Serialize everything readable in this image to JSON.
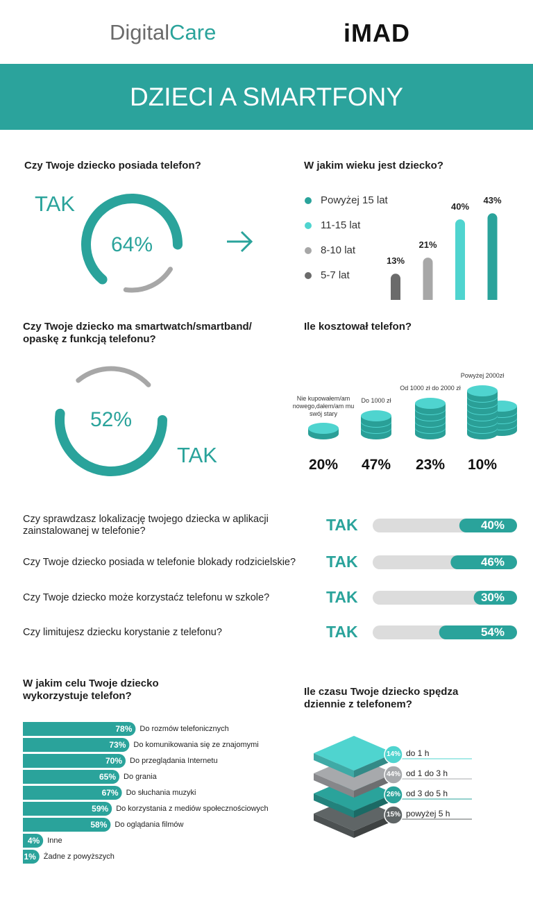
{
  "header": {
    "logo_left": [
      "Digital",
      "Care"
    ],
    "logo_right": "iMAD",
    "title": "DZIECI A SMARTFONY"
  },
  "phone": {
    "question": "Czy Twoje dziecko posiada telefon?",
    "answer": "TAK",
    "share": {
      "value": 64,
      "label": "64%"
    },
    "colors": [
      "#2aa39b",
      "#a7a7a7"
    ]
  },
  "age": {
    "question": "W jakim wieku jest dziecko?",
    "categories": [
      "5-7 lat",
      "8-10 lat",
      "11-15 lat",
      "Powyżej 15 lat"
    ],
    "colors": [
      "#6b6b6b",
      "#a7a7a7",
      "#4fd4cf",
      "#2aa39b"
    ],
    "values": [
      13,
      21,
      40,
      43
    ],
    "value_labels": [
      "13%",
      "21%",
      "40%",
      "43%"
    ]
  },
  "smartwatch": {
    "question": "Czy Twoje dziecko ma smartwatch/smartband/ opaskę z funkcją telefonu?",
    "answer": "TAK",
    "share": {
      "value": 52,
      "label": "52%"
    },
    "colors": [
      "#2aa39b",
      "#a7a7a7"
    ]
  },
  "cost": {
    "question": "Ile kosztował telefon?",
    "categories": [
      "Nie kupowałem/am nowego,dałem/am mu swój stary",
      "Do 1000 zł",
      "Od 1000 zł do 2000 zł",
      "Powyżej 2000zł"
    ],
    "values": [
      20,
      47,
      23,
      10
    ],
    "value_labels": [
      "20%",
      "47%",
      "23%",
      "10%"
    ]
  },
  "checks": {
    "answer": "TAK",
    "questions": [
      "Czy sprawdzasz lokalizację twojego dziecka w aplikacji zainstalowanej w telefonie?",
      "Czy Twoje dziecko posiada w telefonie blokady rodzicielskie?",
      "Czy Twoje dziecko może korzystaćz telefonu w szkole?",
      "Czy limitujesz dziecku korystanie z telefonu?"
    ],
    "values": [
      40,
      46,
      30,
      54
    ],
    "value_labels": [
      "40%",
      "46%",
      "30%",
      "54%"
    ]
  },
  "purpose": {
    "question": "W jakim celu Twoje dziecko wykorzystuje telefon?",
    "categories": [
      "Do rozmów telefonicznych",
      "Do komunikowania się ze znajomymi",
      "Do przeglądania Internetu",
      "Do grania",
      "Do słuchania muzyki",
      "Do korzystania z mediów społecznościowych",
      "Do oglądania filmów",
      "Inne",
      "Żadne z powyższych"
    ],
    "values": [
      78,
      73,
      70,
      65,
      67,
      59,
      58,
      4,
      1
    ],
    "value_labels": [
      "78%",
      "73%",
      "70%",
      "65%",
      "67%",
      "59%",
      "58%",
      "4%",
      "1%"
    ]
  },
  "time": {
    "question": "Ile czasu Twoje dziecko spędza dziennie z telefonem?",
    "categories": [
      "do 1 h",
      "od 1 do 3 h",
      "od 3 do 5 h",
      "powyżej 5 h"
    ],
    "values": [
      14,
      44,
      26,
      15
    ],
    "value_labels": [
      "14%",
      "44%",
      "26%",
      "15%"
    ],
    "colors": [
      "#4fd4cf",
      "#a7a9ac",
      "#2aa39b",
      "#5f6566"
    ]
  }
}
